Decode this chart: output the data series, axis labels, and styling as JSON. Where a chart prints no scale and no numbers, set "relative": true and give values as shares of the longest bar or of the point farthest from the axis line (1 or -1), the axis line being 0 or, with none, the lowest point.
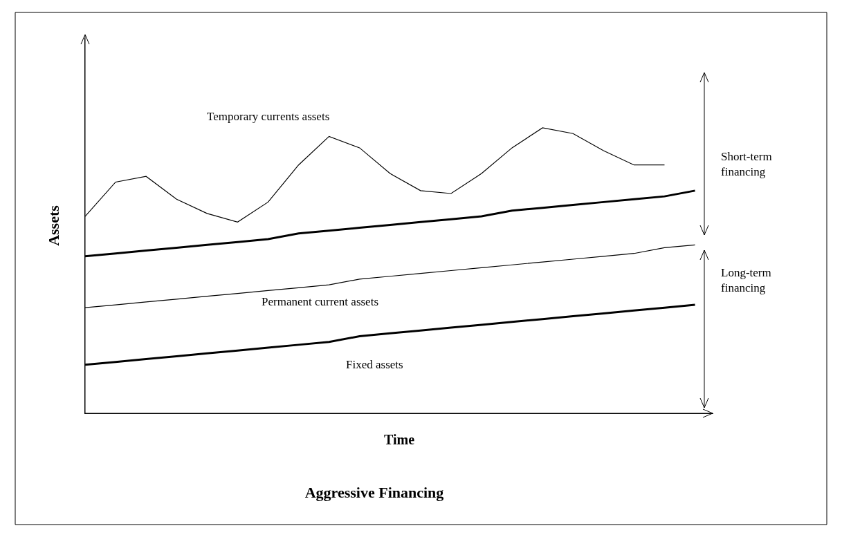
{
  "chart_data": {
    "type": "line",
    "title": "Aggressive Financing",
    "xlabel": "Time",
    "ylabel": "Assets",
    "relative": true,
    "tick_labels": false,
    "marker": "none",
    "line_style": "solid",
    "categories": [
      null,
      null,
      null,
      null,
      null,
      null,
      null,
      null,
      null,
      null,
      null,
      null,
      null,
      null,
      null,
      null,
      null,
      null,
      null,
      null,
      null
    ],
    "series": [
      {
        "color": "#000000",
        "values": [
          0.69,
          0.81,
          0.83,
          0.75,
          0.7,
          0.67,
          0.74,
          0.87,
          0.97,
          0.93,
          0.84,
          0.78,
          0.77,
          0.84,
          0.93,
          1.0,
          0.98,
          0.92,
          0.87,
          0.87,
          null
        ]
      },
      {
        "color": "#000000",
        "values": [
          0.55,
          0.56,
          0.57,
          0.58,
          0.59,
          0.6,
          0.61,
          0.63,
          0.64,
          0.65,
          0.66,
          0.67,
          0.68,
          0.69,
          0.71,
          0.72,
          0.73,
          0.74,
          0.75,
          0.76,
          0.78
        ]
      },
      {
        "color": "#000000",
        "values": [
          0.37,
          0.38,
          0.39,
          0.4,
          0.41,
          0.42,
          0.43,
          0.44,
          0.45,
          0.47,
          0.48,
          0.49,
          0.5,
          0.51,
          0.52,
          0.53,
          0.54,
          0.55,
          0.56,
          0.58,
          0.59
        ]
      },
      {
        "color": "#000000",
        "values": [
          0.17,
          0.18,
          0.19,
          0.2,
          0.21,
          0.22,
          0.23,
          0.24,
          0.25,
          0.27,
          0.28,
          0.29,
          0.3,
          0.31,
          0.32,
          0.33,
          0.34,
          0.35,
          0.36,
          0.37,
          0.38
        ]
      }
    ],
    "annotations": [
      "Temporary currents assets",
      "Permanent current assets",
      "Fixed assets",
      "Short-term financing",
      "Long-term financing"
    ]
  }
}
